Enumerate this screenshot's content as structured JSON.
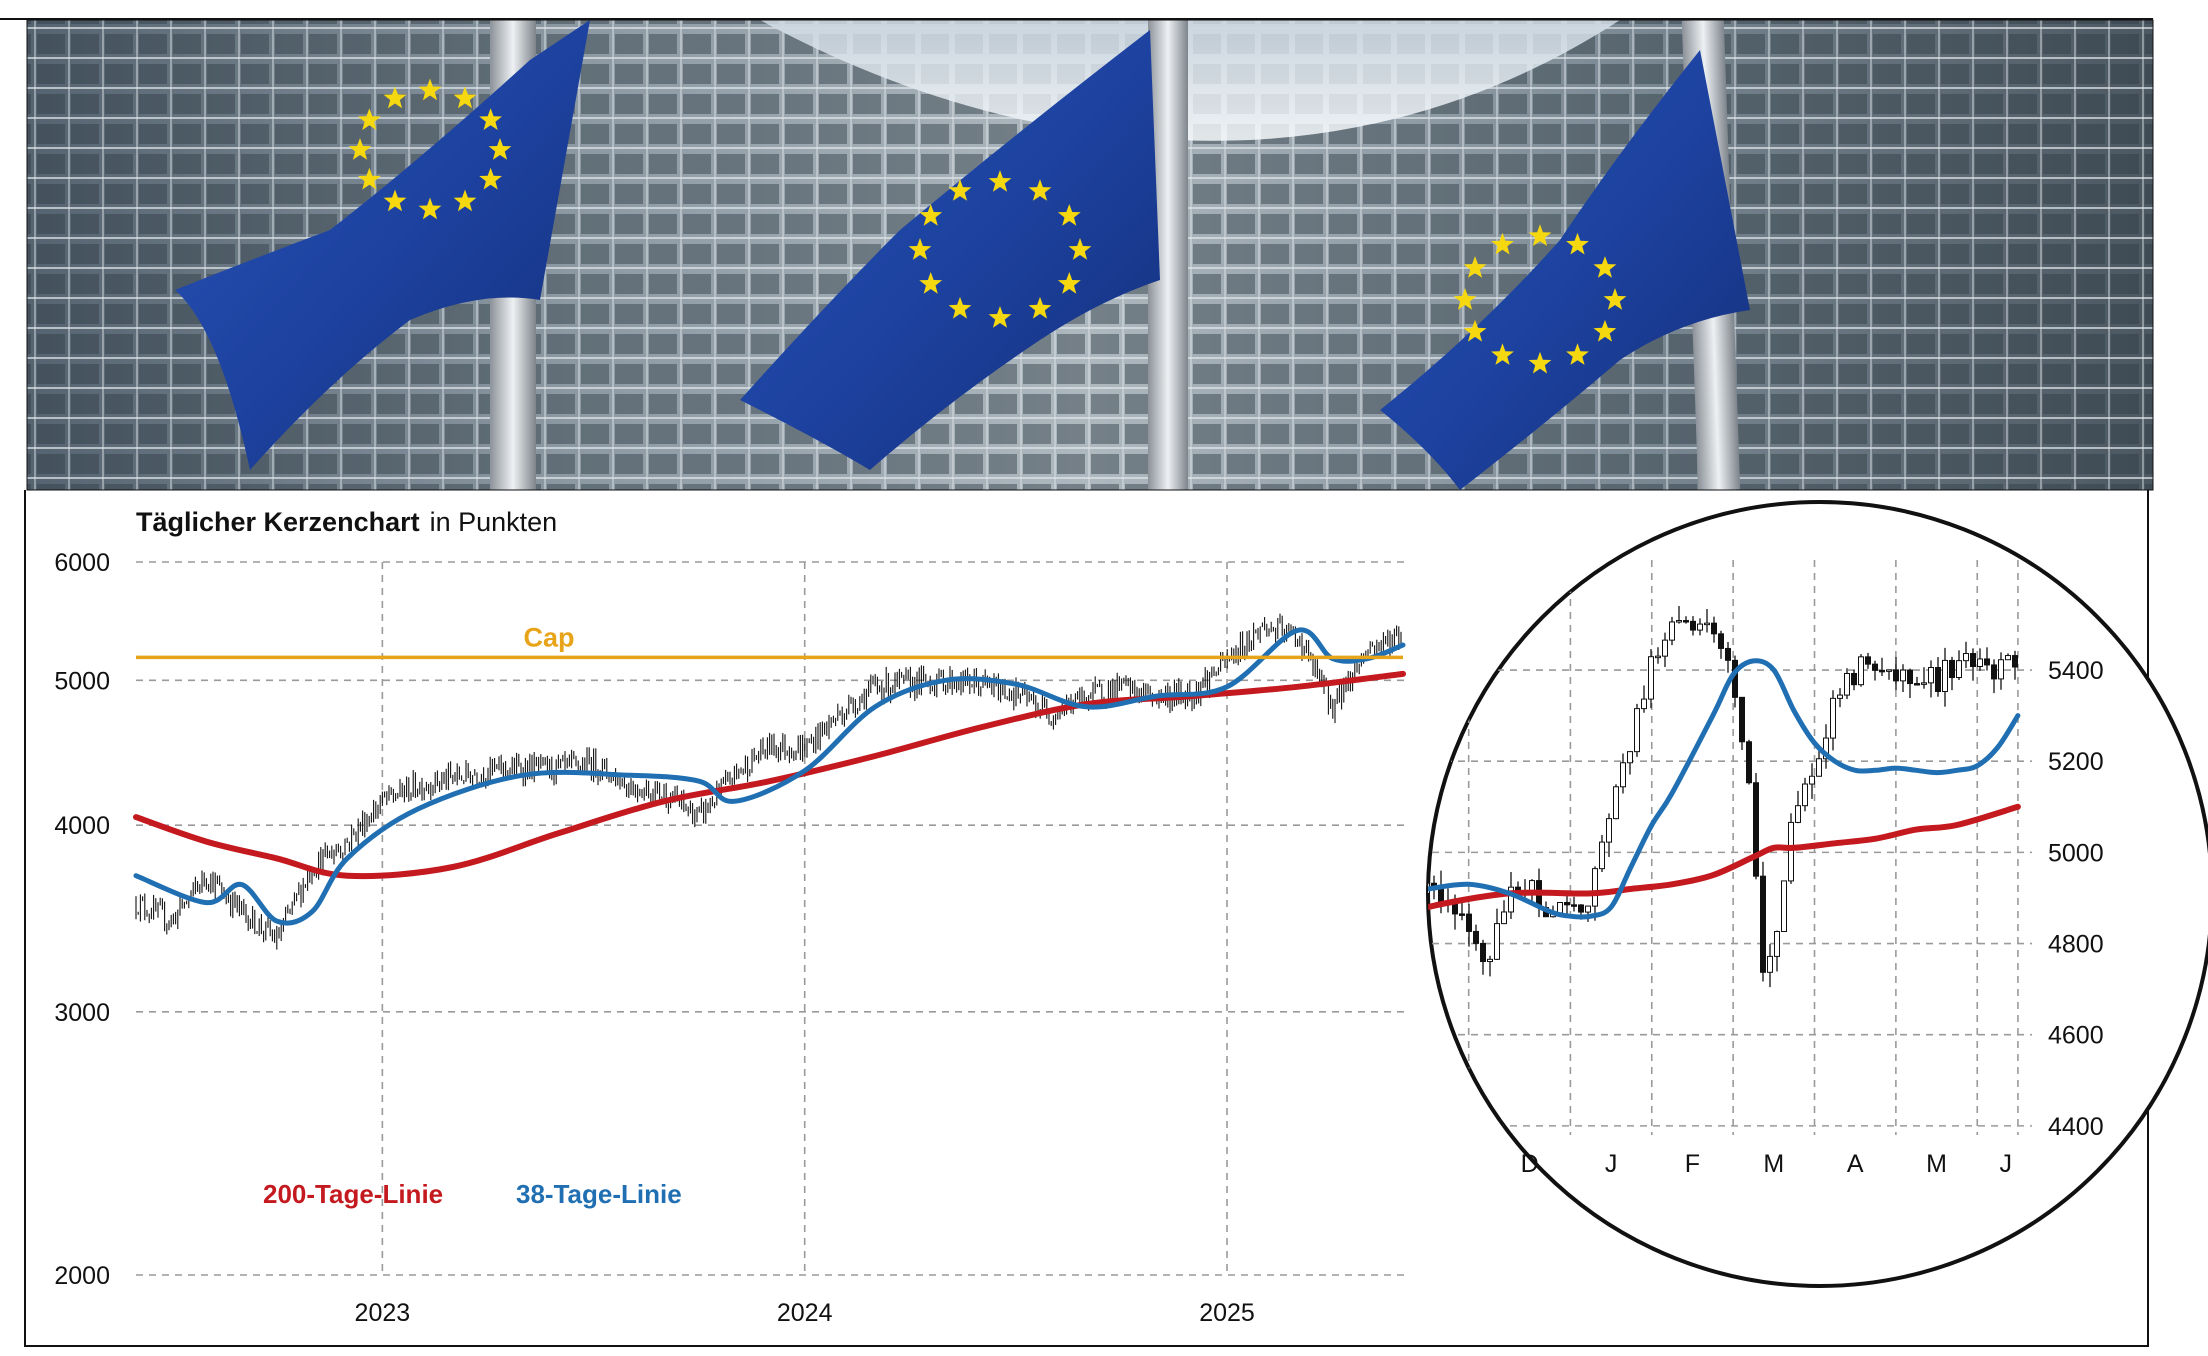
{
  "colors": {
    "ma200": "#c41a1f",
    "ma38": "#1f6fb2",
    "cap": "#e8a418",
    "grid": "#9a9a9a",
    "candle": "#111111"
  },
  "header_image": {
    "icon": "eu-flags-photo"
  },
  "chart_data": [
    {
      "type": "line",
      "title": "Täglicher Kerzenchart",
      "subtitle": "in Punkten",
      "y_scale": "log",
      "ylim": [
        2000,
        6000
      ],
      "yticks": [
        2000,
        3000,
        4000,
        5000,
        6000
      ],
      "x_start": "2022-06",
      "x_end": "2025-06",
      "xticks": [
        "2023",
        "2024",
        "2025"
      ],
      "grid": true,
      "cap": {
        "label": "Cap",
        "value": 5180
      },
      "legend": {
        "placement": "bottom-left",
        "entries": [
          "200-Tage-Linie",
          "38-Tage-Linie"
        ]
      },
      "series": [
        {
          "name": "Index",
          "style": "candlestick",
          "x": [
            "2022-06",
            "2022-07",
            "2022-08",
            "2022-09",
            "2022-10",
            "2022-11",
            "2022-12",
            "2023-01",
            "2023-02",
            "2023-03",
            "2023-04",
            "2023-05",
            "2023-06",
            "2023-07",
            "2023-08",
            "2023-09",
            "2023-10",
            "2023-11",
            "2023-12",
            "2024-01",
            "2024-02",
            "2024-03",
            "2024-04",
            "2024-05",
            "2024-06",
            "2024-07",
            "2024-08",
            "2024-09",
            "2024-10",
            "2024-11",
            "2024-12",
            "2025-01",
            "2025-02",
            "2025-03",
            "2025-04",
            "2025-05",
            "2025-06"
          ],
          "values": [
            3550,
            3450,
            3700,
            3500,
            3350,
            3750,
            3900,
            4150,
            4250,
            4300,
            4350,
            4370,
            4360,
            4400,
            4250,
            4200,
            4050,
            4320,
            4520,
            4500,
            4750,
            4950,
            4980,
            5000,
            4970,
            4900,
            4750,
            4880,
            4950,
            4870,
            4900,
            5150,
            5430,
            5350,
            4800,
            5250,
            5360
          ]
        },
        {
          "name": "200-Tage-Linie",
          "x": [
            "2022-06",
            "2022-08",
            "2022-10",
            "2022-12",
            "2023-03",
            "2023-06",
            "2023-09",
            "2023-12",
            "2024-03",
            "2024-06",
            "2024-09",
            "2024-12",
            "2025-03",
            "2025-06"
          ],
          "values": [
            4050,
            3900,
            3800,
            3700,
            3750,
            3950,
            4150,
            4280,
            4450,
            4650,
            4820,
            4880,
            4950,
            5050
          ]
        },
        {
          "name": "38-Tage-Linie",
          "x": [
            "2022-06",
            "2022-08",
            "2022-09",
            "2022-10",
            "2022-11",
            "2022-12",
            "2023-02",
            "2023-05",
            "2023-08",
            "2023-10",
            "2023-11",
            "2024-01",
            "2024-03",
            "2024-05",
            "2024-07",
            "2024-09",
            "2024-11",
            "2025-01",
            "2025-03",
            "2025-04",
            "2025-05",
            "2025-06"
          ],
          "values": [
            3700,
            3550,
            3650,
            3450,
            3500,
            3800,
            4100,
            4320,
            4320,
            4280,
            4150,
            4350,
            4800,
            5000,
            4970,
            4800,
            4880,
            4950,
            5400,
            5170,
            5170,
            5280
          ]
        }
      ]
    },
    {
      "type": "line",
      "title": "",
      "y_scale": "linear",
      "ylim": [
        4380,
        5580
      ],
      "yticks": [
        4400,
        4600,
        4800,
        5000,
        5200,
        5400
      ],
      "xticks": [
        "D",
        "J",
        "F",
        "M",
        "A",
        "M",
        "J"
      ],
      "grid": true,
      "series": [
        {
          "name": "Index",
          "style": "candlestick",
          "x": [
            0,
            0.5,
            1,
            1.5,
            2,
            2.5,
            3,
            3.5,
            4,
            4.5,
            5,
            5.5,
            6,
            6.5,
            7,
            7.5,
            8,
            8.2,
            8.5,
            9,
            9.5,
            10,
            10.5,
            11,
            11.5,
            12,
            12.5,
            13,
            13.5,
            14,
            14.2,
            14.5
          ],
          "values": [
            4940,
            4880,
            4820,
            4770,
            4900,
            4920,
            4870,
            4860,
            4900,
            5100,
            5250,
            5420,
            5520,
            5500,
            5470,
            5380,
            5100,
            4700,
            4800,
            5080,
            5200,
            5320,
            5400,
            5420,
            5380,
            5400,
            5380,
            5420,
            5400,
            5390,
            5410,
            5400
          ]
        },
        {
          "name": "200-Tage-Linie",
          "x": [
            0,
            2,
            4,
            5,
            6,
            7,
            8,
            8.5,
            9,
            10,
            11,
            12,
            13,
            14.5
          ],
          "values": [
            4880,
            4910,
            4910,
            4920,
            4930,
            4950,
            4990,
            5010,
            5010,
            5020,
            5030,
            5050,
            5060,
            5100
          ]
        },
        {
          "name": "38-Tage-Linie",
          "x": [
            0,
            1,
            2,
            3,
            3.5,
            4,
            4.5,
            5,
            5.5,
            6,
            7,
            7.5,
            8,
            8.5,
            9,
            9.5,
            10,
            10.5,
            11,
            11.5,
            12,
            12.5,
            13,
            13.5,
            14,
            14.5
          ],
          "values": [
            4920,
            4930,
            4910,
            4870,
            4860,
            4860,
            4880,
            4970,
            5060,
            5130,
            5300,
            5390,
            5420,
            5400,
            5310,
            5240,
            5200,
            5180,
            5180,
            5185,
            5180,
            5175,
            5180,
            5190,
            5230,
            5300
          ]
        }
      ]
    }
  ]
}
